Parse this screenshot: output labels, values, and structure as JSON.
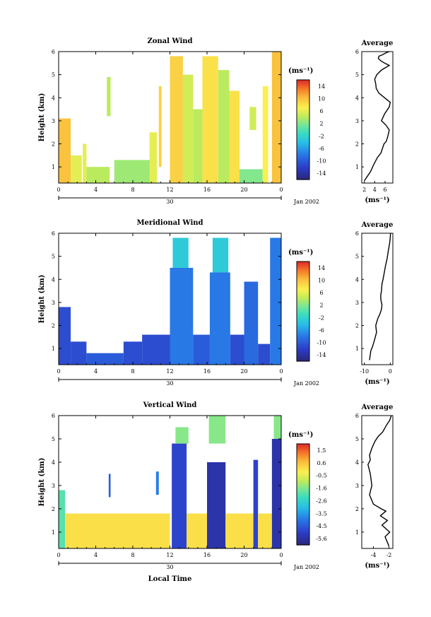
{
  "figure": {
    "xlabel_bottom": "Local Time",
    "date_label": "Jan 2002",
    "day_label": "30"
  },
  "chart_data": [
    {
      "type": "heatmap",
      "title": "Zonal Wind",
      "ylabel": "Height (km)",
      "xlim": [
        0,
        24
      ],
      "ylim": [
        0.3,
        6
      ],
      "xticks": [
        "0",
        "4",
        "8",
        "12",
        "16",
        "20",
        "0"
      ],
      "yticks": [
        "1",
        "2",
        "3",
        "4",
        "5",
        "6"
      ],
      "colorbar": {
        "unit": "(ms⁻¹)",
        "ticks": [
          "14",
          "10",
          "6",
          "2",
          "-2",
          "-6",
          "-10",
          "-14"
        ],
        "range": [
          -16,
          16
        ]
      },
      "bands": [
        {
          "x0": 0.0,
          "x1": 1.3,
          "y0": 0.3,
          "y1": 3.1,
          "value": 10
        },
        {
          "x0": 1.3,
          "x1": 2.5,
          "y0": 0.3,
          "y1": 1.5,
          "value": 6
        },
        {
          "x0": 2.6,
          "x1": 3.0,
          "y0": 0.3,
          "y1": 2.0,
          "value": 6
        },
        {
          "x0": 3.0,
          "x1": 5.5,
          "y0": 0.3,
          "y1": 1.0,
          "value": 4
        },
        {
          "x0": 5.2,
          "x1": 5.6,
          "y0": 3.2,
          "y1": 4.9,
          "value": 4
        },
        {
          "x0": 6.0,
          "x1": 10.0,
          "y0": 0.3,
          "y1": 1.3,
          "value": 3
        },
        {
          "x0": 9.8,
          "x1": 10.6,
          "y0": 0.3,
          "y1": 2.5,
          "value": 6
        },
        {
          "x0": 10.8,
          "x1": 11.1,
          "y0": 1.0,
          "y1": 4.5,
          "value": 9
        },
        {
          "x0": 12.0,
          "x1": 13.4,
          "y0": 0.3,
          "y1": 5.8,
          "value": 9
        },
        {
          "x0": 13.4,
          "x1": 14.5,
          "y0": 0.3,
          "y1": 5.0,
          "value": 5
        },
        {
          "x0": 14.5,
          "x1": 15.5,
          "y0": 0.3,
          "y1": 3.5,
          "value": 4
        },
        {
          "x0": 15.5,
          "x1": 17.2,
          "y0": 0.3,
          "y1": 5.8,
          "value": 8
        },
        {
          "x0": 17.2,
          "x1": 18.4,
          "y0": 0.3,
          "y1": 5.2,
          "value": 4
        },
        {
          "x0": 18.4,
          "x1": 19.5,
          "y0": 0.3,
          "y1": 4.3,
          "value": 8
        },
        {
          "x0": 19.5,
          "x1": 22.0,
          "y0": 0.3,
          "y1": 0.9,
          "value": 2
        },
        {
          "x0": 20.6,
          "x1": 21.3,
          "y0": 2.6,
          "y1": 3.6,
          "value": 5
        },
        {
          "x0": 22.0,
          "x1": 22.6,
          "y0": 0.3,
          "y1": 4.5,
          "value": 7
        },
        {
          "x0": 23.0,
          "x1": 24.0,
          "y0": 0.3,
          "y1": 6.0,
          "value": 10
        }
      ]
    },
    {
      "type": "line",
      "title": "Average",
      "xlabel": "(ms⁻¹)",
      "xlim": [
        1.5,
        7.5
      ],
      "ylim": [
        0.3,
        6
      ],
      "xticks": [
        "2",
        "4",
        "6"
      ],
      "yticks": [
        "1",
        "2",
        "3",
        "4",
        "5",
        "6"
      ],
      "x": [
        2.0,
        3.2,
        3.8,
        4.5,
        5.2,
        5.8,
        6.2,
        6.5,
        6.8,
        6.2,
        5.3,
        5.9,
        6.8,
        7.0,
        5.9,
        4.8,
        4.3,
        4.2,
        4.0,
        4.4,
        5.3,
        6.8,
        5.9,
        5.2,
        4.7,
        4.8,
        5.4,
        5.8,
        6.2,
        6.8
      ],
      "y": [
        0.4,
        0.8,
        1.1,
        1.4,
        1.6,
        2.0,
        2.1,
        2.3,
        2.6,
        2.8,
        3.0,
        3.3,
        3.6,
        3.8,
        4.0,
        4.2,
        4.4,
        4.6,
        4.8,
        5.0,
        5.2,
        5.4,
        5.5,
        5.6,
        5.7,
        5.8,
        5.85,
        5.9,
        5.95,
        6.0
      ]
    },
    {
      "type": "heatmap",
      "title": "Meridional Wind",
      "ylabel": "Height (km)",
      "xlim": [
        0,
        24
      ],
      "ylim": [
        0.3,
        6
      ],
      "xticks": [
        "0",
        "4",
        "8",
        "12",
        "16",
        "20",
        "0"
      ],
      "yticks": [
        "1",
        "2",
        "3",
        "4",
        "5",
        "6"
      ],
      "colorbar": {
        "unit": "(ms⁻¹)",
        "ticks": [
          "14",
          "10",
          "6",
          "2",
          "-2",
          "-6",
          "-10",
          "-14"
        ],
        "range": [
          -16,
          16
        ]
      },
      "bands": [
        {
          "x0": 0.0,
          "x1": 1.3,
          "y0": 0.3,
          "y1": 2.8,
          "value": -11
        },
        {
          "x0": 1.3,
          "x1": 3.0,
          "y0": 0.3,
          "y1": 1.3,
          "value": -11
        },
        {
          "x0": 3.0,
          "x1": 7.0,
          "y0": 0.3,
          "y1": 0.8,
          "value": -10
        },
        {
          "x0": 7.0,
          "x1": 9.0,
          "y0": 0.3,
          "y1": 1.3,
          "value": -11
        },
        {
          "x0": 9.0,
          "x1": 12.0,
          "y0": 0.3,
          "y1": 1.6,
          "value": -11
        },
        {
          "x0": 12.0,
          "x1": 14.5,
          "y0": 0.3,
          "y1": 4.5,
          "value": -8
        },
        {
          "x0": 12.3,
          "x1": 14.0,
          "y0": 4.5,
          "y1": 5.8,
          "value": -3
        },
        {
          "x0": 14.5,
          "x1": 16.3,
          "y0": 0.3,
          "y1": 1.6,
          "value": -10
        },
        {
          "x0": 16.3,
          "x1": 18.5,
          "y0": 0.3,
          "y1": 4.3,
          "value": -8
        },
        {
          "x0": 16.6,
          "x1": 18.3,
          "y0": 4.3,
          "y1": 5.8,
          "value": -3
        },
        {
          "x0": 18.5,
          "x1": 20.0,
          "y0": 0.3,
          "y1": 1.6,
          "value": -11
        },
        {
          "x0": 20.0,
          "x1": 21.5,
          "y0": 0.3,
          "y1": 3.9,
          "value": -9
        },
        {
          "x0": 21.5,
          "x1": 22.8,
          "y0": 0.3,
          "y1": 1.2,
          "value": -11
        },
        {
          "x0": 22.8,
          "x1": 24.0,
          "y0": 0.3,
          "y1": 5.8,
          "value": -8
        }
      ]
    },
    {
      "type": "line",
      "title": "Average",
      "xlabel": "(ms⁻¹)",
      "xlim": [
        -11,
        1
      ],
      "ylim": [
        0.3,
        6
      ],
      "xticks": [
        "-10",
        "0"
      ],
      "yticks": [
        "1",
        "2",
        "3",
        "4",
        "5",
        "6"
      ],
      "x": [
        -8.0,
        -7.5,
        -6.8,
        -6.0,
        -5.3,
        -5.6,
        -4.8,
        -4.0,
        -3.4,
        -3.2,
        -3.6,
        -3.7,
        -3.4,
        -3.2,
        -2.8,
        -2.3,
        -1.8,
        -1.2,
        -0.8,
        -0.5,
        -0.2,
        0.0,
        0.1
      ],
      "y": [
        0.5,
        0.9,
        1.1,
        1.4,
        1.7,
        2.0,
        2.3,
        2.5,
        2.7,
        2.9,
        3.1,
        3.3,
        3.5,
        3.8,
        4.0,
        4.3,
        4.6,
        4.9,
        5.2,
        5.4,
        5.6,
        5.8,
        6.0
      ]
    },
    {
      "type": "heatmap",
      "title": "Vertical Wind",
      "ylabel": "Height (km)",
      "xlim": [
        0,
        24
      ],
      "ylim": [
        0.3,
        6
      ],
      "xticks": [
        "0",
        "4",
        "8",
        "12",
        "16",
        "20",
        "0"
      ],
      "yticks": [
        "1",
        "2",
        "3",
        "4",
        "5",
        "6"
      ],
      "colorbar": {
        "unit": "(ms⁻¹)",
        "ticks": [
          "1.5",
          "0.6",
          "-0.5",
          "-1.6",
          "-2.6",
          "-3.5",
          "-4.5",
          "-5.6"
        ],
        "range": [
          -6.1,
          2.0
        ]
      },
      "bands": [
        {
          "x0": 0.0,
          "x1": 0.7,
          "y0": 0.3,
          "y1": 2.8,
          "value": -2.0
        },
        {
          "x0": 0.7,
          "x1": 12.0,
          "y0": 0.3,
          "y1": 1.8,
          "value": 0.0
        },
        {
          "x0": 5.4,
          "x1": 5.6,
          "y0": 2.5,
          "y1": 3.5,
          "value": -4.5
        },
        {
          "x0": 10.5,
          "x1": 10.8,
          "y0": 2.6,
          "y1": 3.6,
          "value": -4.0
        },
        {
          "x0": 12.2,
          "x1": 13.8,
          "y0": 0.3,
          "y1": 4.8,
          "value": -5.0
        },
        {
          "x0": 12.6,
          "x1": 14.0,
          "y0": 4.8,
          "y1": 5.5,
          "value": -1.5
        },
        {
          "x0": 13.8,
          "x1": 16.0,
          "y0": 0.3,
          "y1": 1.8,
          "value": 0.0
        },
        {
          "x0": 16.0,
          "x1": 18.0,
          "y0": 0.3,
          "y1": 4.0,
          "value": -5.5
        },
        {
          "x0": 16.2,
          "x1": 18.0,
          "y0": 4.8,
          "y1": 6.0,
          "value": -1.5
        },
        {
          "x0": 18.0,
          "x1": 21.0,
          "y0": 0.3,
          "y1": 1.8,
          "value": 0.0
        },
        {
          "x0": 21.0,
          "x1": 21.5,
          "y0": 0.3,
          "y1": 4.1,
          "value": -5.0
        },
        {
          "x0": 21.5,
          "x1": 23.0,
          "y0": 0.3,
          "y1": 1.8,
          "value": 0.0
        },
        {
          "x0": 23.0,
          "x1": 24.0,
          "y0": 0.3,
          "y1": 5.0,
          "value": -5.5
        },
        {
          "x0": 23.2,
          "x1": 24.0,
          "y0": 5.0,
          "y1": 6.0,
          "value": -1.5
        }
      ]
    },
    {
      "type": "line",
      "title": "Average",
      "xlabel": "(ms⁻¹)",
      "xlim": [
        -5.5,
        -1.5
      ],
      "ylim": [
        0.3,
        6
      ],
      "xticks": [
        "-4",
        "-2"
      ],
      "yticks": [
        "1",
        "2",
        "3",
        "4",
        "5",
        "6"
      ],
      "x": [
        -2.0,
        -2.5,
        -1.9,
        -2.9,
        -2.2,
        -3.1,
        -2.4,
        -3.0,
        -4.0,
        -4.5,
        -4.2,
        -4.4,
        -4.7,
        -4.4,
        -4.5,
        -4.2,
        -3.8,
        -3.4,
        -2.8,
        -2.3,
        -1.9,
        -1.7
      ],
      "y": [
        0.4,
        0.8,
        1.0,
        1.3,
        1.5,
        1.7,
        1.9,
        2.0,
        2.2,
        2.6,
        3.0,
        3.5,
        3.9,
        4.1,
        4.3,
        4.6,
        4.9,
        5.1,
        5.3,
        5.6,
        5.8,
        6.0
      ]
    }
  ]
}
